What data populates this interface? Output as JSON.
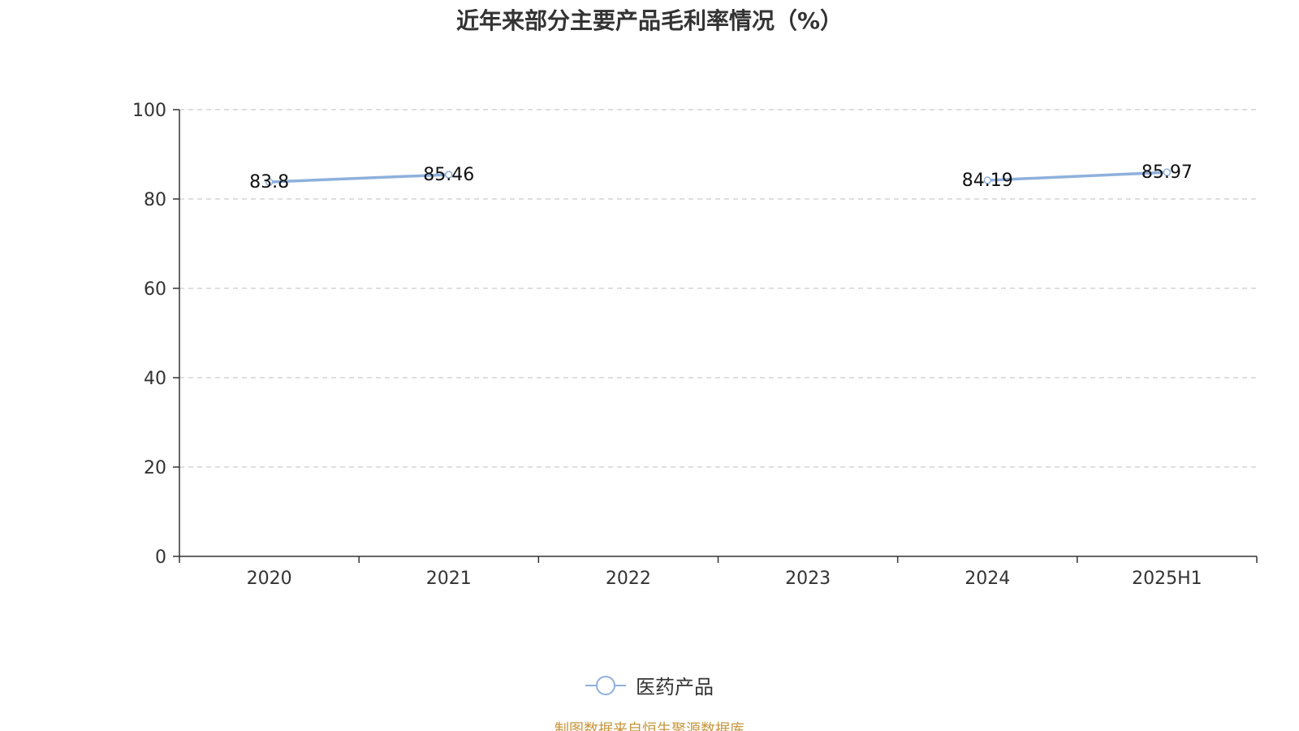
{
  "chart_data": {
    "type": "line",
    "title": "近年来部分主要产品毛利率情况（%）",
    "categories": [
      "2020",
      "2021",
      "2022",
      "2023",
      "2024",
      "2025H1"
    ],
    "series": [
      {
        "name": "医药产品",
        "values": [
          83.8,
          85.46,
          null,
          null,
          84.19,
          85.97
        ],
        "labels": [
          "83.8",
          "85.46",
          "",
          "",
          "84.19",
          "85.97"
        ],
        "color": "#8eb0dc"
      }
    ],
    "xlabel": "",
    "ylabel": "",
    "ylim": [
      0,
      100
    ],
    "yticks": [
      "0",
      "20",
      "40",
      "60",
      "80",
      "100"
    ],
    "grid": true,
    "legend_position": "bottom-center"
  },
  "footer": {
    "source": "制图数据来自恒生聚源数据库"
  }
}
